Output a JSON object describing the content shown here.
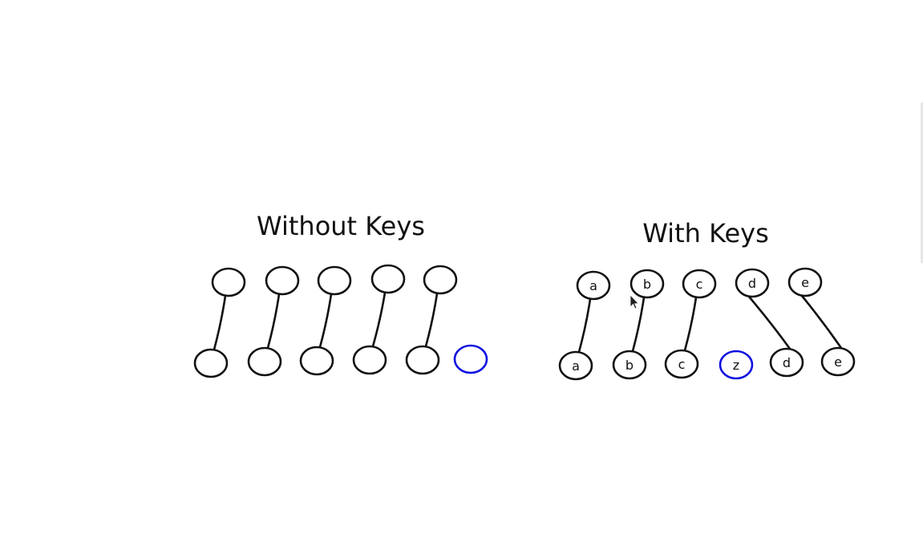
{
  "without_keys": {
    "title": "Without Keys",
    "top_nodes": [
      "",
      "",
      "",
      "",
      ""
    ],
    "bottom_nodes": [
      "",
      "",
      "",
      "",
      "",
      ""
    ],
    "highlight_bottom_index": 5,
    "links": [
      [
        0,
        0
      ],
      [
        1,
        1
      ],
      [
        2,
        2
      ],
      [
        3,
        3
      ],
      [
        4,
        4
      ]
    ]
  },
  "with_keys": {
    "title": "With Keys",
    "top_nodes": [
      "a",
      "b",
      "c",
      "d",
      "e"
    ],
    "bottom_nodes": [
      "a",
      "b",
      "c",
      "z",
      "d",
      "e"
    ],
    "highlight_bottom_index": 3,
    "links": [
      [
        0,
        0
      ],
      [
        1,
        1
      ],
      [
        2,
        2
      ],
      [
        3,
        4
      ],
      [
        4,
        5
      ]
    ]
  },
  "colors": {
    "stroke": "#111111",
    "highlight": "#1010e0",
    "background": "#ffffff"
  }
}
